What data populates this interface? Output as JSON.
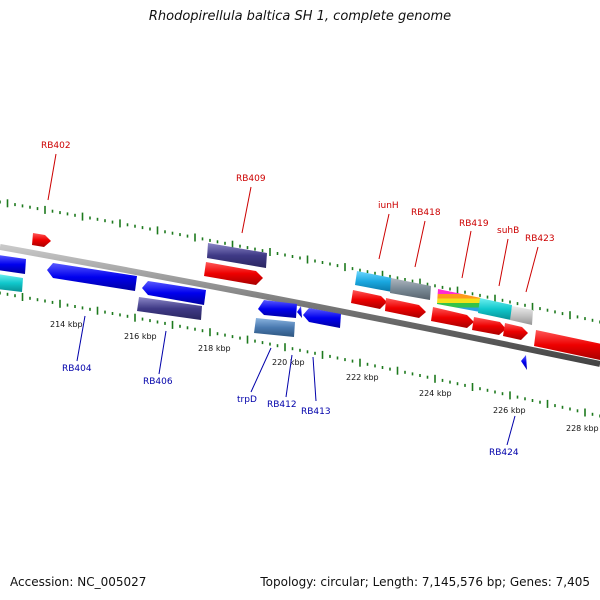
{
  "title": "Rhodopirellula baltica SH 1, complete genome",
  "footer": {
    "accession": "Accession: NC_005027",
    "summary": "Topology: circular; Length: 7,145,576 bp; Genes: 7,405"
  },
  "colors": {
    "backbone": "#8a8a8a",
    "tick": "#1d7a1d",
    "label_plus": "#cc0000",
    "label_minus": "#0000aa",
    "scale_label": "#111111"
  },
  "scale_labels": [
    "214 kbp",
    "216 kbp",
    "218 kbp",
    "220 kbp",
    "222 kbp",
    "224 kbp",
    "226 kbp",
    "228 kbp"
  ],
  "gene_labels_plus": [
    "RB402",
    "RB409",
    "iunH",
    "RB418",
    "RB419",
    "suhB",
    "RB423"
  ],
  "gene_labels_minus": [
    "RB404",
    "RB406",
    "trpD",
    "RB412",
    "RB413",
    "RB424"
  ]
}
